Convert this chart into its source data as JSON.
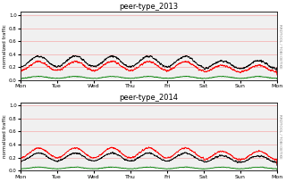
{
  "title_2013": "peer-type_2013",
  "title_2014": "peer-type_2014",
  "ylabel": "normalized traffic",
  "right_label": "RRDTOOL / TOBI OETIKE",
  "xlabels": [
    "Mon",
    "Tue",
    "Wed",
    "Thu",
    "Fri",
    "Sat",
    "Sun",
    "Mon"
  ],
  "yticks": [
    0.0,
    0.2,
    0.4,
    0.6,
    0.8,
    1.0
  ],
  "ylim": [
    0.0,
    1.05
  ],
  "background_color": "#f0f0f0",
  "grid_color": "#f5aaaa",
  "line_colors": [
    "black",
    "red",
    "green"
  ],
  "n_points": 2016,
  "figsize": [
    3.2,
    2.04
  ],
  "dpi": 100
}
